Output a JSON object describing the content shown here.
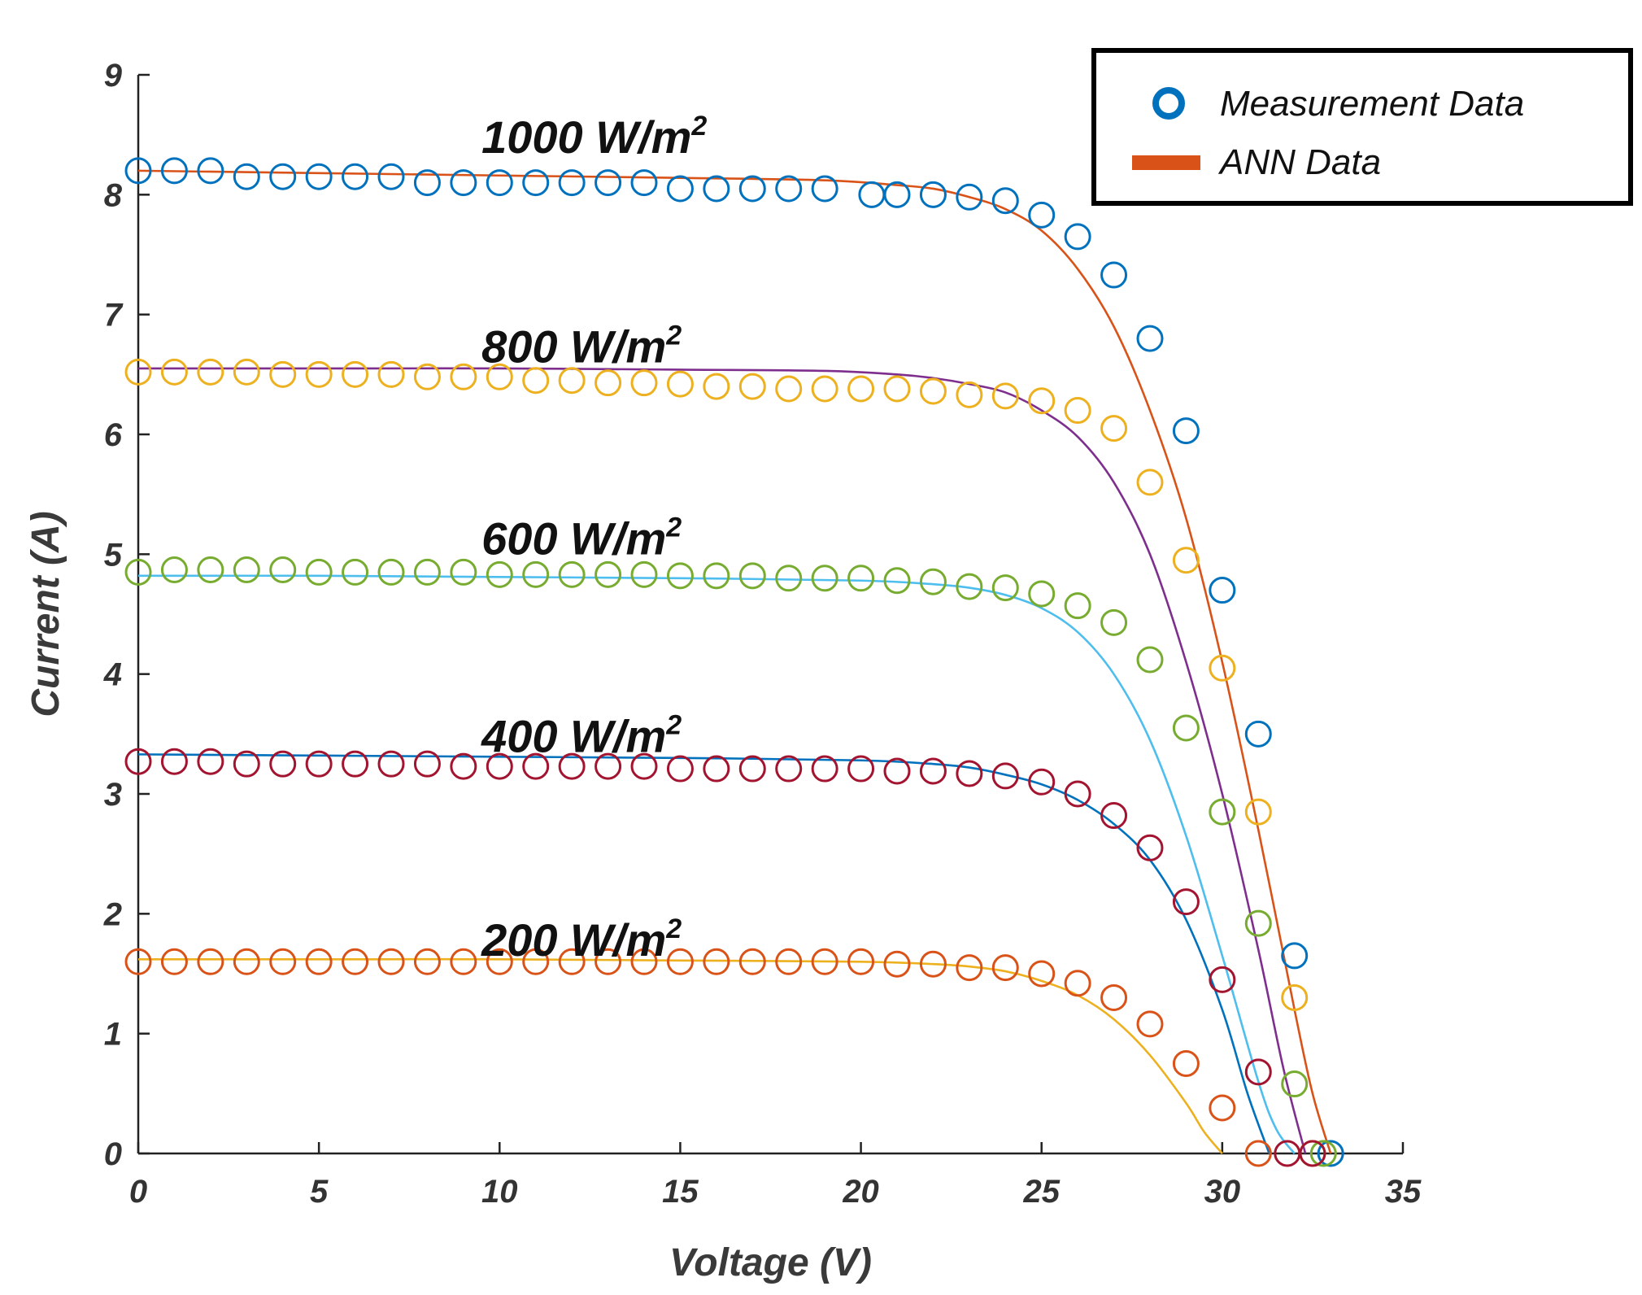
{
  "chart_data": {
    "type": "line",
    "title": "",
    "xlabel": "Voltage (V)",
    "ylabel": "Current (A)",
    "xlim": [
      0,
      35
    ],
    "ylim": [
      0,
      9
    ],
    "xticks": [
      0,
      5,
      10,
      15,
      20,
      25,
      30,
      35
    ],
    "yticks": [
      0,
      1,
      2,
      3,
      4,
      5,
      6,
      7,
      8,
      9
    ],
    "grid": false,
    "legend": {
      "placement": "top-right",
      "entries": [
        {
          "label": "Measurement Data",
          "marker": "circle",
          "color": "#0072bd"
        },
        {
          "label": "ANN Data",
          "marker": "line",
          "color": "#d95319"
        }
      ]
    },
    "series": [
      {
        "name": "1000 W/m2",
        "label_main": "1000 W/m",
        "label_sup": "2",
        "label_at": [
          9.5,
          8.35
        ],
        "meas_color": "#0072bd",
        "ann_color": "#d95319",
        "meas_x": [
          0,
          1,
          2,
          3,
          4,
          5,
          6,
          7,
          8,
          9,
          10,
          11,
          12,
          13,
          14,
          15,
          16,
          17,
          18,
          19,
          20.3,
          21,
          22,
          23,
          24,
          25,
          26,
          27,
          28,
          29,
          30,
          31,
          32,
          33
        ],
        "meas_y": [
          8.2,
          8.2,
          8.2,
          8.15,
          8.15,
          8.15,
          8.15,
          8.15,
          8.1,
          8.1,
          8.1,
          8.1,
          8.1,
          8.1,
          8.1,
          8.05,
          8.05,
          8.05,
          8.05,
          8.05,
          8.0,
          8.0,
          8.0,
          7.98,
          7.95,
          7.83,
          7.65,
          7.33,
          6.8,
          6.03,
          4.7,
          3.5,
          1.65,
          0
        ],
        "ann_x": [
          0,
          5,
          10,
          15,
          19,
          21,
          22,
          23,
          24,
          25,
          26,
          27,
          28,
          29,
          30,
          31,
          32,
          32.5,
          33
        ],
        "ann_y": [
          8.2,
          8.18,
          8.16,
          8.14,
          8.12,
          8.08,
          8.05,
          7.98,
          7.88,
          7.7,
          7.38,
          6.9,
          6.2,
          5.3,
          4.1,
          2.7,
          1.2,
          0.5,
          0
        ]
      },
      {
        "name": "800 W/m2",
        "label_main": "800 W/m",
        "label_sup": "2",
        "label_at": [
          9.5,
          6.6
        ],
        "meas_color": "#edb120",
        "ann_color": "#7e2f8e",
        "meas_x": [
          0,
          1,
          2,
          3,
          4,
          5,
          6,
          7,
          8,
          9,
          10,
          11,
          12,
          13,
          14,
          15,
          16,
          17,
          18,
          19,
          20,
          21,
          22,
          23,
          24,
          25,
          26,
          27,
          28,
          29,
          30,
          31,
          32,
          32.5
        ],
        "meas_y": [
          6.52,
          6.52,
          6.52,
          6.52,
          6.5,
          6.5,
          6.5,
          6.5,
          6.48,
          6.48,
          6.48,
          6.45,
          6.45,
          6.43,
          6.43,
          6.42,
          6.4,
          6.4,
          6.38,
          6.38,
          6.38,
          6.38,
          6.36,
          6.33,
          6.32,
          6.28,
          6.2,
          6.05,
          5.6,
          4.95,
          4.05,
          2.85,
          1.3,
          0
        ],
        "ann_x": [
          0,
          5,
          10,
          15,
          19,
          21,
          22,
          23,
          24,
          25,
          26,
          27,
          28,
          29,
          30,
          31,
          31.7,
          32.3
        ],
        "ann_y": [
          6.55,
          6.55,
          6.55,
          6.54,
          6.53,
          6.5,
          6.47,
          6.42,
          6.35,
          6.2,
          5.98,
          5.6,
          5.0,
          4.1,
          3.0,
          1.7,
          0.7,
          0
        ]
      },
      {
        "name": "600 W/m2",
        "label_main": "600 W/m",
        "label_sup": "2",
        "label_at": [
          9.5,
          5.0
        ],
        "meas_color": "#77ac30",
        "ann_color": "#4dbeee",
        "meas_x": [
          0,
          1,
          2,
          3,
          4,
          5,
          6,
          7,
          8,
          9,
          10,
          11,
          12,
          13,
          14,
          15,
          16,
          17,
          18,
          19,
          20,
          21,
          22,
          23,
          24,
          25,
          26,
          27,
          28,
          29,
          30,
          31,
          32,
          32.8
        ],
        "meas_y": [
          4.85,
          4.87,
          4.87,
          4.87,
          4.87,
          4.85,
          4.85,
          4.85,
          4.85,
          4.85,
          4.83,
          4.83,
          4.83,
          4.83,
          4.83,
          4.82,
          4.82,
          4.82,
          4.8,
          4.8,
          4.8,
          4.78,
          4.77,
          4.73,
          4.72,
          4.67,
          4.57,
          4.43,
          4.12,
          3.55,
          2.85,
          1.92,
          0.58,
          0
        ],
        "ann_x": [
          0,
          5,
          10,
          15,
          20,
          22,
          23,
          24,
          25,
          26,
          27,
          28,
          29,
          30,
          31,
          31.5,
          32
        ],
        "ann_y": [
          4.82,
          4.82,
          4.81,
          4.8,
          4.78,
          4.75,
          4.72,
          4.66,
          4.55,
          4.35,
          4.0,
          3.45,
          2.65,
          1.65,
          0.6,
          0.2,
          0
        ]
      },
      {
        "name": "400 W/m2",
        "label_main": "400 W/m",
        "label_sup": "2",
        "label_at": [
          9.5,
          3.35
        ],
        "meas_color": "#a2142f",
        "ann_color": "#0072bd",
        "meas_x": [
          0,
          1,
          2,
          3,
          4,
          5,
          6,
          7,
          8,
          9,
          10,
          11,
          12,
          13,
          14,
          15,
          16,
          17,
          18,
          19,
          20,
          21,
          22,
          23,
          24,
          25,
          26,
          27,
          28,
          29,
          30,
          31,
          31.8,
          32.5
        ],
        "meas_y": [
          3.27,
          3.27,
          3.27,
          3.25,
          3.25,
          3.25,
          3.25,
          3.25,
          3.25,
          3.23,
          3.23,
          3.23,
          3.23,
          3.23,
          3.23,
          3.21,
          3.21,
          3.21,
          3.21,
          3.21,
          3.21,
          3.19,
          3.19,
          3.17,
          3.15,
          3.1,
          3.0,
          2.82,
          2.55,
          2.1,
          1.45,
          0.68,
          0,
          0
        ],
        "ann_x": [
          0,
          5,
          10,
          15,
          20,
          22,
          23,
          24,
          25,
          26,
          27,
          28,
          29,
          30,
          30.7,
          31.3
        ],
        "ann_y": [
          3.33,
          3.32,
          3.31,
          3.3,
          3.28,
          3.25,
          3.22,
          3.16,
          3.08,
          2.95,
          2.75,
          2.45,
          1.95,
          1.2,
          0.5,
          0
        ]
      },
      {
        "name": "200 W/m2",
        "label_main": "200 W/m",
        "label_sup": "2",
        "label_at": [
          9.5,
          1.65
        ],
        "meas_color": "#d95319",
        "ann_color": "#edb120",
        "meas_x": [
          0,
          1,
          2,
          3,
          4,
          5,
          6,
          7,
          8,
          9,
          10,
          11,
          12,
          13,
          14,
          15,
          16,
          17,
          18,
          19,
          20,
          21,
          22,
          23,
          24,
          25,
          26,
          27,
          28,
          29,
          30,
          31
        ],
        "meas_y": [
          1.6,
          1.6,
          1.6,
          1.6,
          1.6,
          1.6,
          1.6,
          1.6,
          1.6,
          1.6,
          1.6,
          1.6,
          1.6,
          1.6,
          1.6,
          1.6,
          1.6,
          1.6,
          1.6,
          1.6,
          1.6,
          1.58,
          1.58,
          1.55,
          1.55,
          1.5,
          1.42,
          1.3,
          1.08,
          0.75,
          0.38,
          0
        ],
        "ann_x": [
          0,
          5,
          10,
          15,
          20,
          22,
          23,
          24,
          25,
          26,
          27,
          28,
          29,
          29.5,
          30
        ],
        "ann_y": [
          1.62,
          1.62,
          1.62,
          1.61,
          1.6,
          1.58,
          1.56,
          1.52,
          1.44,
          1.32,
          1.12,
          0.82,
          0.42,
          0.18,
          0
        ]
      }
    ]
  }
}
